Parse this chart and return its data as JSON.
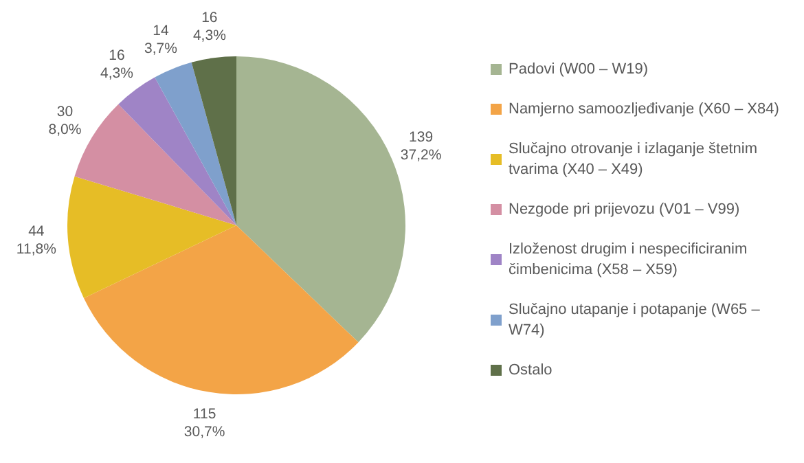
{
  "chart_data": {
    "type": "pie",
    "categories": [
      "Padovi (W00 – W19)",
      "Namjerno samoozljeđivanje (X60 – X84)",
      "Slučajno otrovanje i izlaganje štetnim tvarima (X40 – X49)",
      "Nezgode pri prijevozu (V01 – V99)",
      "Izloženost drugim i nespecificiranim čimbenicima (X58 – X59)",
      "Slučajno utapanje i potapanje (W65 – W74)",
      "Ostalo"
    ],
    "values": [
      139,
      115,
      44,
      30,
      16,
      14,
      16
    ],
    "value_labels": [
      "139\n37,2%",
      "115\n30,7%",
      "44\n11,8%",
      "30\n8,0%",
      "16\n4,3%",
      "14\n3,7%",
      "16\n4,3%"
    ],
    "colors": [
      "#a5b592",
      "#f3a447",
      "#e6bd26",
      "#d48fa3",
      "#9f84c6",
      "#7fa0cc",
      "#5f7049"
    ],
    "legend": "right"
  }
}
